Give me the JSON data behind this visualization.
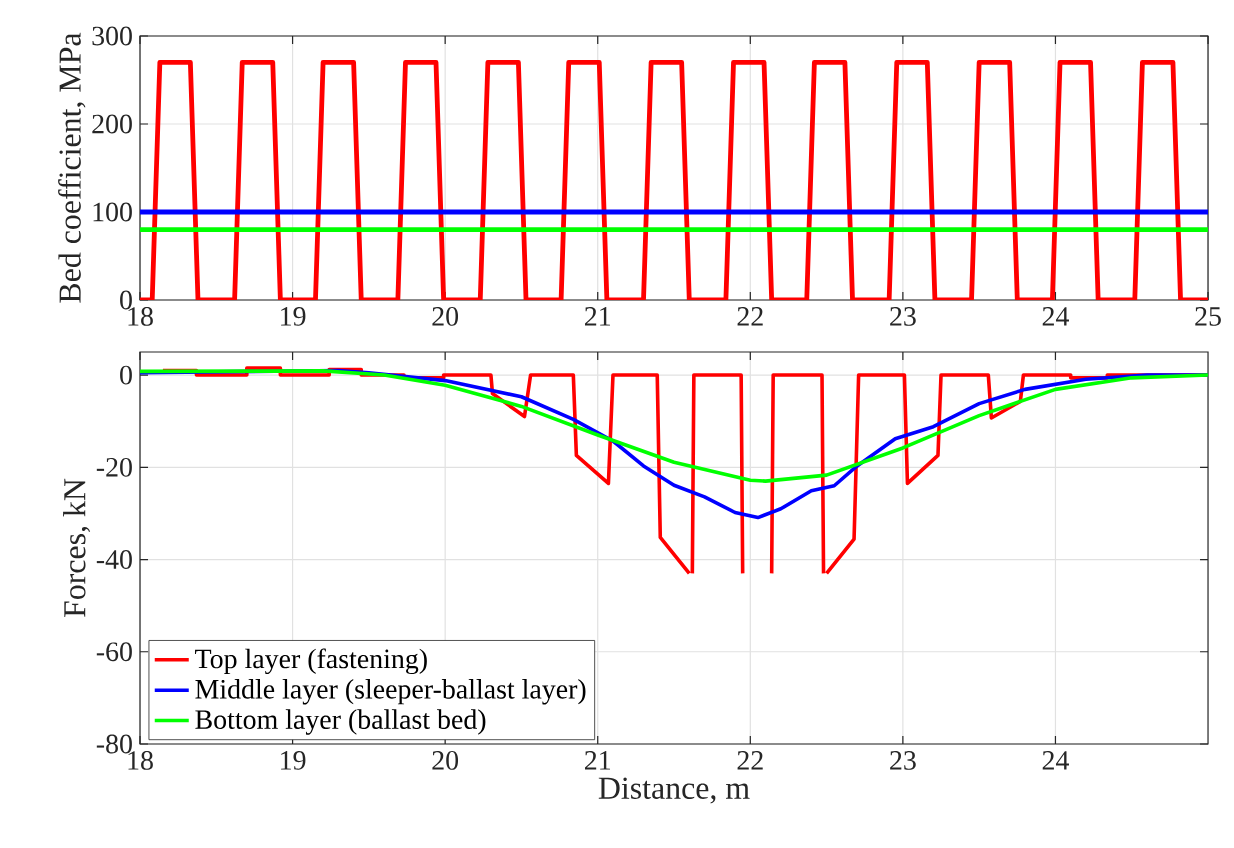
{
  "chart_data": [
    {
      "type": "line",
      "ylabel": "Bed coefficient, MPa",
      "xlim": [
        18,
        25
      ],
      "xticks": [
        18,
        19,
        20,
        21,
        22,
        23,
        24,
        25
      ],
      "ylim": [
        0,
        300
      ],
      "yticks": [
        0,
        100,
        200,
        300
      ],
      "grid": true,
      "line_style": "solid",
      "series": [
        {
          "color": "#ff0000",
          "x": [
            18.0,
            18.08,
            18.13,
            18.33,
            18.38,
            18.62,
            18.67,
            18.87,
            18.92,
            19.15,
            19.2,
            19.4,
            19.45,
            19.69,
            19.74,
            19.94,
            19.99,
            20.23,
            20.28,
            20.48,
            20.53,
            20.76,
            20.81,
            21.01,
            21.06,
            21.3,
            21.35,
            21.55,
            21.6,
            21.84,
            21.89,
            22.09,
            22.14,
            22.37,
            22.42,
            22.62,
            22.67,
            22.91,
            22.96,
            23.16,
            23.21,
            23.45,
            23.5,
            23.7,
            23.75,
            23.98,
            24.03,
            24.23,
            24.28,
            24.52,
            24.57,
            24.77,
            24.82,
            25.0
          ],
          "values": [
            0,
            0,
            270,
            270,
            0,
            0,
            270,
            270,
            0,
            0,
            270,
            270,
            0,
            0,
            270,
            270,
            0,
            0,
            270,
            270,
            0,
            0,
            270,
            270,
            0,
            0,
            270,
            270,
            0,
            0,
            270,
            270,
            0,
            0,
            270,
            270,
            0,
            0,
            270,
            270,
            0,
            0,
            270,
            270,
            0,
            0,
            270,
            270,
            0,
            0,
            270,
            270,
            0,
            0
          ]
        },
        {
          "color": "#0000ff",
          "x": [
            18,
            25
          ],
          "values": [
            100,
            100
          ]
        },
        {
          "color": "#00ff00",
          "x": [
            18,
            25
          ],
          "values": [
            80,
            80
          ]
        }
      ]
    },
    {
      "type": "line",
      "xlabel": "Distance, m",
      "ylabel": "Forces, kN",
      "xlim": [
        18,
        25
      ],
      "xticks": [
        18,
        19,
        20,
        21,
        22,
        23,
        24
      ],
      "ylim": [
        -80,
        5
      ],
      "yticks": [
        -80,
        -60,
        -40,
        -20,
        0
      ],
      "grid": true,
      "legend": "bottom left",
      "line_style": "solid",
      "series": [
        {
          "name": "Top layer (fastening)",
          "color": "#ff0000",
          "x": [
            18.15,
            18.37,
            18.37,
            18.7,
            18.7,
            18.92,
            18.92,
            19.24,
            19.24,
            19.45,
            19.45,
            19.73,
            19.73,
            19.99,
            19.99,
            20.3,
            20.31,
            20.52,
            20.56,
            20.84,
            20.86,
            21.07,
            21.1,
            21.39,
            21.41,
            21.6,
            null,
            21.62,
            21.63,
            21.94,
            21.95,
            null,
            22.14,
            22.15,
            22.47,
            22.48,
            null,
            22.5,
            22.68,
            22.71,
            23.01,
            23.03,
            23.23,
            23.25,
            23.56,
            23.58,
            23.77,
            23.79,
            24.1,
            24.1,
            24.34,
            24.34,
            25.0
          ],
          "values": [
            1,
            1,
            0,
            0,
            1.5,
            1.5,
            0,
            0,
            1.2,
            1.2,
            0,
            0,
            -0.6,
            -0.6,
            0,
            0,
            -4,
            -9,
            0,
            0,
            -17.4,
            -23.5,
            0,
            0,
            -35.2,
            -43,
            null,
            -43,
            0,
            0,
            -43,
            null,
            -43,
            0,
            0,
            -43,
            null,
            -43,
            -35.6,
            0,
            0,
            -23.5,
            -17.4,
            0,
            0,
            -9.3,
            -5.7,
            0,
            0,
            -0.6,
            -0.6,
            0,
            0
          ]
        },
        {
          "name": "Middle layer (sleeper-ballast layer)",
          "color": "#0000ff",
          "x": [
            18.0,
            19.3,
            19.5,
            20.0,
            20.5,
            20.84,
            21.1,
            21.3,
            21.5,
            21.7,
            21.9,
            22.05,
            22.2,
            22.4,
            22.55,
            22.7,
            22.95,
            23.2,
            23.5,
            23.8,
            24.2,
            24.6,
            25.0
          ],
          "values": [
            0.5,
            1,
            0.5,
            -1.2,
            -4.7,
            -9.6,
            -14.3,
            -19.7,
            -23.9,
            -26.4,
            -29.8,
            -30.9,
            -29,
            -25.1,
            -24,
            -19.7,
            -13.8,
            -11.2,
            -6.2,
            -3.1,
            -0.9,
            0,
            0
          ]
        },
        {
          "name": "Bottom layer (ballast bed)",
          "color": "#00ff00",
          "x": [
            18.0,
            19.2,
            19.6,
            20.0,
            20.5,
            21.0,
            21.5,
            22.0,
            22.1,
            22.5,
            23.0,
            23.5,
            24.0,
            24.5,
            25.0
          ],
          "values": [
            0.8,
            0.9,
            0,
            -2.2,
            -6.8,
            -13,
            -18.9,
            -22.8,
            -23,
            -21.7,
            -15.8,
            -8.8,
            -3.1,
            -0.6,
            0
          ]
        }
      ]
    }
  ]
}
